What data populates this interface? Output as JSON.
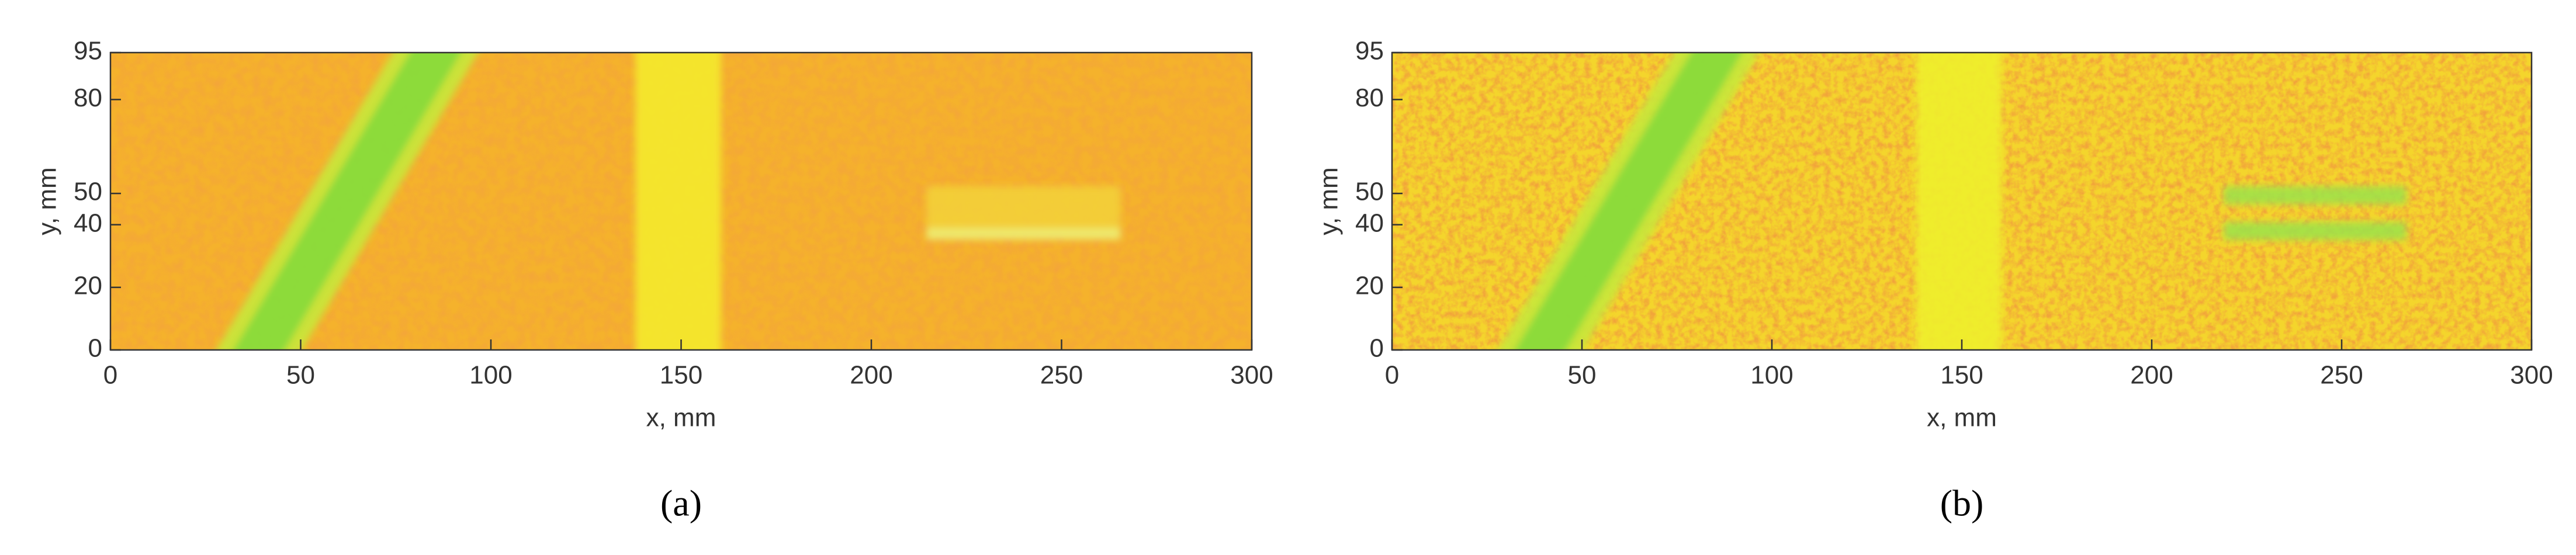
{
  "chart_data": [
    {
      "type": "heatmap",
      "xlabel": "x, mm",
      "ylabel": "y, mm",
      "caption": "(a)",
      "xlim": [
        0,
        300
      ],
      "ylim": [
        0,
        95
      ],
      "xticks": [
        0,
        50,
        100,
        150,
        200,
        250,
        300
      ],
      "yticks": [
        0,
        20,
        40,
        50,
        80,
        95
      ]
    },
    {
      "type": "heatmap",
      "xlabel": "x, mm",
      "ylabel": "y, mm",
      "caption": "(b)",
      "xlim": [
        0,
        300
      ],
      "ylim": [
        0,
        95
      ],
      "xticks": [
        0,
        50,
        100,
        150,
        200,
        250,
        300
      ],
      "yticks": [
        0,
        20,
        40,
        50,
        80,
        95
      ]
    }
  ]
}
